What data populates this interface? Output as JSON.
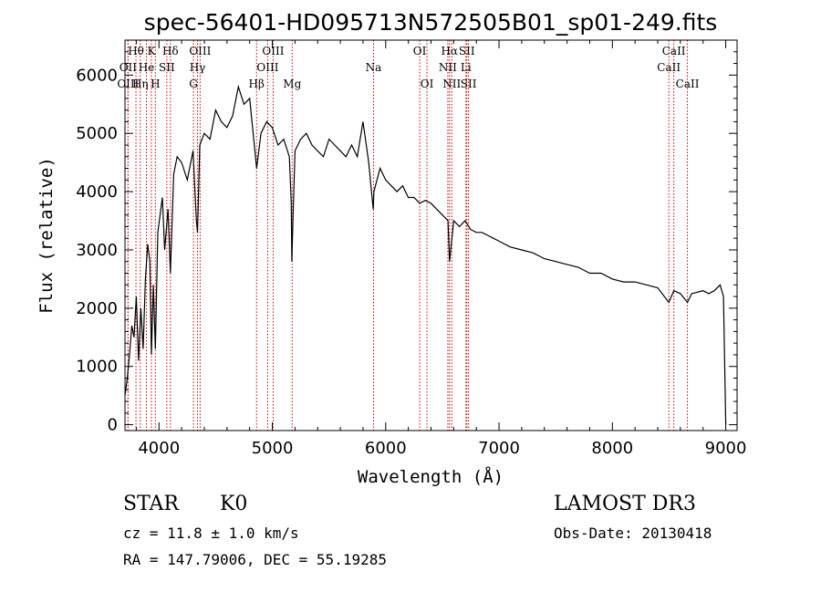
{
  "chart_data": {
    "type": "line",
    "title": "spec-56401-HD095713N572505B01_sp01-249.fits",
    "xlabel": "Wavelength (Å)",
    "ylabel": "Flux (relative)",
    "xlim": [
      3700,
      9100
    ],
    "ylim": [
      -100,
      6600
    ],
    "x_ticks": [
      4000,
      5000,
      6000,
      7000,
      8000,
      9000
    ],
    "y_ticks": [
      0,
      1000,
      2000,
      3000,
      4000,
      5000,
      6000
    ],
    "series": [
      {
        "name": "spectrum",
        "x": [
          3700,
          3720,
          3740,
          3760,
          3780,
          3800,
          3820,
          3840,
          3860,
          3880,
          3900,
          3920,
          3933,
          3950,
          3968,
          3990,
          4010,
          4030,
          4050,
          4080,
          4101,
          4130,
          4160,
          4200,
          4250,
          4300,
          4330,
          4340,
          4360,
          4400,
          4450,
          4500,
          4550,
          4600,
          4650,
          4700,
          4750,
          4800,
          4861,
          4900,
          4950,
          5000,
          5050,
          5100,
          5150,
          5167,
          5172,
          5183,
          5200,
          5250,
          5300,
          5350,
          5400,
          5450,
          5500,
          5550,
          5600,
          5650,
          5700,
          5750,
          5800,
          5850,
          5890,
          5896,
          5950,
          6000,
          6050,
          6100,
          6150,
          6200,
          6250,
          6300,
          6350,
          6400,
          6450,
          6500,
          6550,
          6563,
          6600,
          6650,
          6700,
          6750,
          6800,
          6850,
          6900,
          6950,
          7000,
          7100,
          7200,
          7300,
          7400,
          7500,
          7600,
          7700,
          7800,
          7900,
          8000,
          8100,
          8200,
          8300,
          8400,
          8498,
          8542,
          8600,
          8662,
          8700,
          8800,
          8850,
          8900,
          8950,
          8980,
          9000
        ],
        "y": [
          500,
          800,
          1200,
          1700,
          1500,
          2200,
          1100,
          2000,
          1300,
          2500,
          3100,
          2800,
          1200,
          2400,
          1300,
          3300,
          3600,
          3900,
          3000,
          3700,
          2600,
          4300,
          4600,
          4500,
          4200,
          4700,
          3500,
          3300,
          4800,
          5000,
          4900,
          5400,
          5200,
          5100,
          5300,
          5800,
          5500,
          5600,
          4400,
          5000,
          5200,
          5100,
          4800,
          4900,
          4600,
          3800,
          2800,
          3600,
          4700,
          4900,
          5000,
          4800,
          4700,
          4600,
          4900,
          4800,
          4700,
          4600,
          4800,
          4600,
          5200,
          4500,
          3700,
          4000,
          4400,
          4200,
          4100,
          4000,
          4100,
          3900,
          3900,
          3800,
          3850,
          3800,
          3700,
          3600,
          3500,
          2800,
          3500,
          3400,
          3500,
          3350,
          3300,
          3300,
          3250,
          3200,
          3150,
          3050,
          3000,
          2950,
          2850,
          2800,
          2750,
          2700,
          2600,
          2600,
          2500,
          2450,
          2450,
          2400,
          2350,
          2100,
          2300,
          2250,
          2100,
          2250,
          2300,
          2250,
          2300,
          2400,
          2200,
          0
        ]
      }
    ],
    "spectral_lines": [
      {
        "label": "Hθ",
        "x": 3797,
        "row": 1
      },
      {
        "label": "K",
        "x": 3933,
        "row": 1
      },
      {
        "label": "Hδ",
        "x": 4101,
        "row": 1
      },
      {
        "label": "OIII",
        "x": 4363,
        "row": 1
      },
      {
        "label": "OIII",
        "x": 5007,
        "row": 1
      },
      {
        "label": "OI",
        "x": 6300,
        "row": 1
      },
      {
        "label": "Hα",
        "x": 6563,
        "row": 1
      },
      {
        "label": "SII",
        "x": 6716,
        "row": 1
      },
      {
        "label": "CaII",
        "x": 8542,
        "row": 1
      },
      {
        "label": "OII",
        "x": 3727,
        "row": 2
      },
      {
        "label": "He",
        "x": 3889,
        "row": 2
      },
      {
        "label": "SII",
        "x": 4069,
        "row": 2
      },
      {
        "label": "Hγ",
        "x": 4340,
        "row": 2
      },
      {
        "label": "OIII",
        "x": 4959,
        "row": 2
      },
      {
        "label": "Na",
        "x": 5893,
        "row": 2
      },
      {
        "label": "NII",
        "x": 6548,
        "row": 2
      },
      {
        "label": "Li",
        "x": 6708,
        "row": 2
      },
      {
        "label": "CaII",
        "x": 8498,
        "row": 2
      },
      {
        "label": "OIII",
        "x": 3727,
        "row": 3
      },
      {
        "label": "Hη",
        "x": 3835,
        "row": 3
      },
      {
        "label": "H",
        "x": 3968,
        "row": 3
      },
      {
        "label": "G",
        "x": 4304,
        "row": 3
      },
      {
        "label": "Hβ",
        "x": 4861,
        "row": 3
      },
      {
        "label": "Mg",
        "x": 5175,
        "row": 3
      },
      {
        "label": "OI",
        "x": 6364,
        "row": 3
      },
      {
        "label": "NII",
        "x": 6583,
        "row": 3
      },
      {
        "label": "SII",
        "x": 6731,
        "row": 3
      },
      {
        "label": "CaII",
        "x": 8662,
        "row": 3
      }
    ]
  },
  "info": {
    "object_type": "STAR",
    "spectral_class": "K0",
    "survey": "LAMOST DR3",
    "redshift": "cz = 11.8 ± 1.0 km/s",
    "obs_date": "Obs-Date: 20130418",
    "coords": "RA = 147.79006, DEC =  55.19285"
  },
  "colors": {
    "line_marker": "#cc0000",
    "spectrum": "#000000"
  }
}
